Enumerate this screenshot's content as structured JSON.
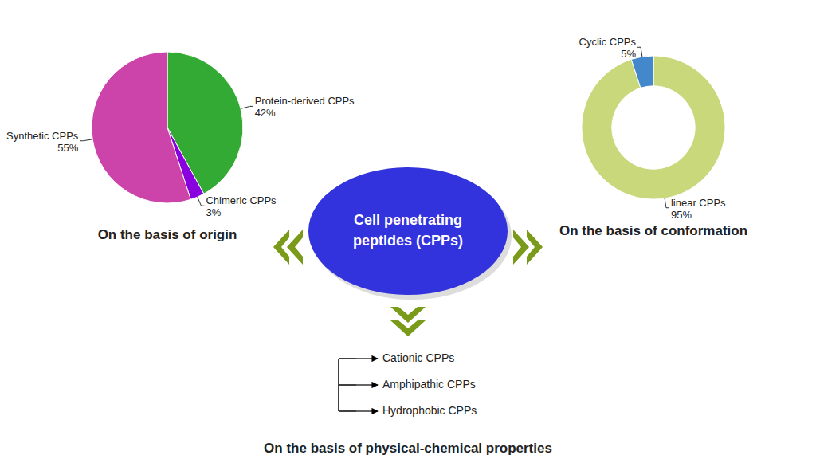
{
  "chart_data": [
    {
      "type": "pie",
      "title": "On the basis of origin",
      "categories": [
        "Protein-derived CPPs",
        "Chimeric CPPs",
        "Synthetic CPPs"
      ],
      "values": [
        42,
        3,
        55
      ],
      "value_labels": [
        "42%",
        "3%",
        "55%"
      ],
      "colors": [
        "#33aa33",
        "#8800dd",
        "#cc44aa"
      ],
      "data_labels": true
    },
    {
      "type": "donut",
      "title": "On the basis of conformation",
      "categories": [
        "linear CPPs",
        "Cyclic CPPs"
      ],
      "values": [
        95,
        5
      ],
      "value_labels": [
        "95%",
        "5%"
      ],
      "colors": [
        "#c8d87a",
        "#4488cc"
      ],
      "data_labels": true
    },
    {
      "type": "list",
      "title": "On the basis of physical-chemical properties",
      "categories": [
        "Cationic CPPs",
        "Amphipathic CPPs",
        "Hydrophobic CPPs"
      ],
      "annotations": [
        "Cell penetrating\npeptides (CPPs)"
      ]
    }
  ]
}
